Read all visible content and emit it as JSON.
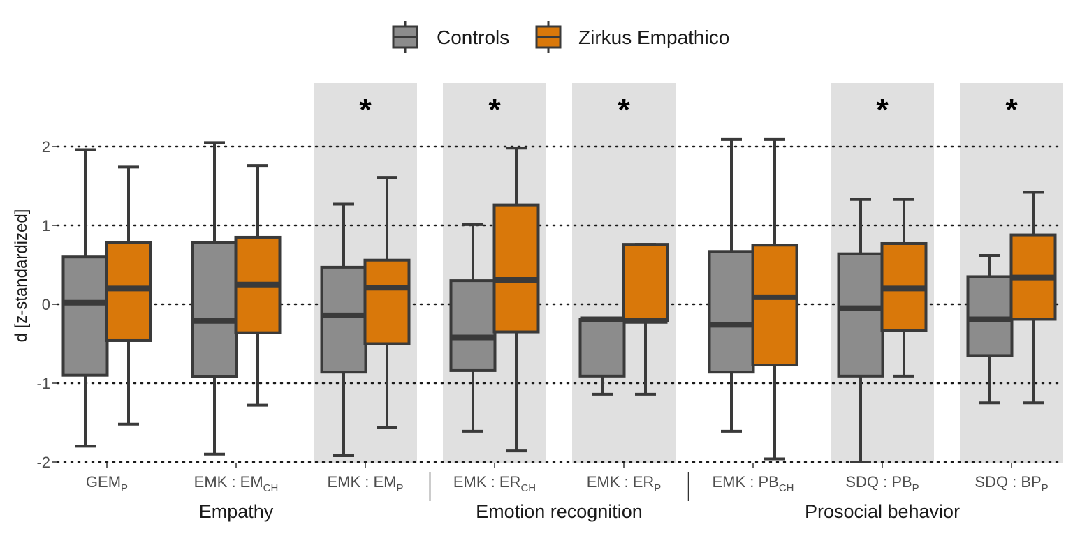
{
  "chart_data": {
    "type": "boxplot",
    "ylabel": "d [z-standardized]",
    "ylim": [
      -2,
      2.6
    ],
    "y_ticks": [
      "-2",
      "-1",
      "0",
      "1",
      "2"
    ],
    "grid": "dotted horizontal at y ticks",
    "legend": {
      "position": "top",
      "entries": [
        "Controls",
        "Zirkus Empathico"
      ]
    },
    "colors": {
      "Controls": "#8c8c8c",
      "Zirkus Empathico": "#d9780a",
      "outline": "#3a3a3a",
      "highlight": "#e0e0e0"
    },
    "significance_marker": "*",
    "groups": [
      {
        "label": "Empathy",
        "categories": [
          0,
          1,
          2
        ]
      },
      {
        "label": "Emotion recognition",
        "categories": [
          3,
          4
        ]
      },
      {
        "label": "Prosocial behavior",
        "categories": [
          5,
          6,
          7
        ]
      }
    ],
    "categories": [
      {
        "label": "GEM",
        "sub": "P",
        "significant": false,
        "controls": {
          "min": -1.8,
          "q1": -0.9,
          "median": 0.02,
          "q3": 0.6,
          "max": 1.96
        },
        "zirkus": {
          "min": -1.52,
          "q1": -0.46,
          "median": 0.2,
          "q3": 0.78,
          "max": 1.74
        }
      },
      {
        "label": "EMK : EM",
        "sub": "CH",
        "significant": false,
        "controls": {
          "min": -1.9,
          "q1": -0.92,
          "median": -0.21,
          "q3": 0.78,
          "max": 2.05
        },
        "zirkus": {
          "min": -1.28,
          "q1": -0.36,
          "median": 0.25,
          "q3": 0.85,
          "max": 1.76
        }
      },
      {
        "label": "EMK : EM",
        "sub": "P",
        "significant": true,
        "controls": {
          "min": -1.92,
          "q1": -0.86,
          "median": -0.14,
          "q3": 0.47,
          "max": 1.27
        },
        "zirkus": {
          "min": -1.56,
          "q1": -0.5,
          "median": 0.21,
          "q3": 0.56,
          "max": 1.61
        }
      },
      {
        "label": "EMK : ER",
        "sub": "CH",
        "significant": true,
        "controls": {
          "min": -1.61,
          "q1": -0.84,
          "median": -0.42,
          "q3": 0.3,
          "max": 1.01
        },
        "zirkus": {
          "min": -1.86,
          "q1": -0.35,
          "median": 0.31,
          "q3": 1.26,
          "max": 1.98
        }
      },
      {
        "label": "EMK : ER",
        "sub": "P",
        "significant": true,
        "controls": {
          "min": -1.14,
          "q1": -0.91,
          "median": -0.19,
          "q3": -0.19,
          "max": -0.19
        },
        "zirkus": {
          "min": -1.14,
          "q1": -0.21,
          "median": -0.21,
          "q3": 0.76,
          "max": 0.76
        }
      },
      {
        "label": "EMK : PB",
        "sub": "CH",
        "significant": false,
        "controls": {
          "min": -1.61,
          "q1": -0.86,
          "median": -0.26,
          "q3": 0.67,
          "max": 2.09
        },
        "zirkus": {
          "min": -1.96,
          "q1": -0.77,
          "median": 0.09,
          "q3": 0.75,
          "max": 2.09
        }
      },
      {
        "label": "SDQ : PB",
        "sub": "P",
        "significant": true,
        "controls": {
          "min": -2.0,
          "q1": -0.91,
          "median": -0.05,
          "q3": 0.64,
          "max": 1.33
        },
        "zirkus": {
          "min": -0.91,
          "q1": -0.33,
          "median": 0.2,
          "q3": 0.77,
          "max": 1.33
        }
      },
      {
        "label": "SDQ : BP",
        "sub": "P",
        "significant": true,
        "controls": {
          "min": -1.25,
          "q1": -0.65,
          "median": -0.19,
          "q3": 0.35,
          "max": 0.62
        },
        "zirkus": {
          "min": -1.25,
          "q1": -0.19,
          "median": 0.34,
          "q3": 0.88,
          "max": 1.42
        }
      }
    ]
  }
}
